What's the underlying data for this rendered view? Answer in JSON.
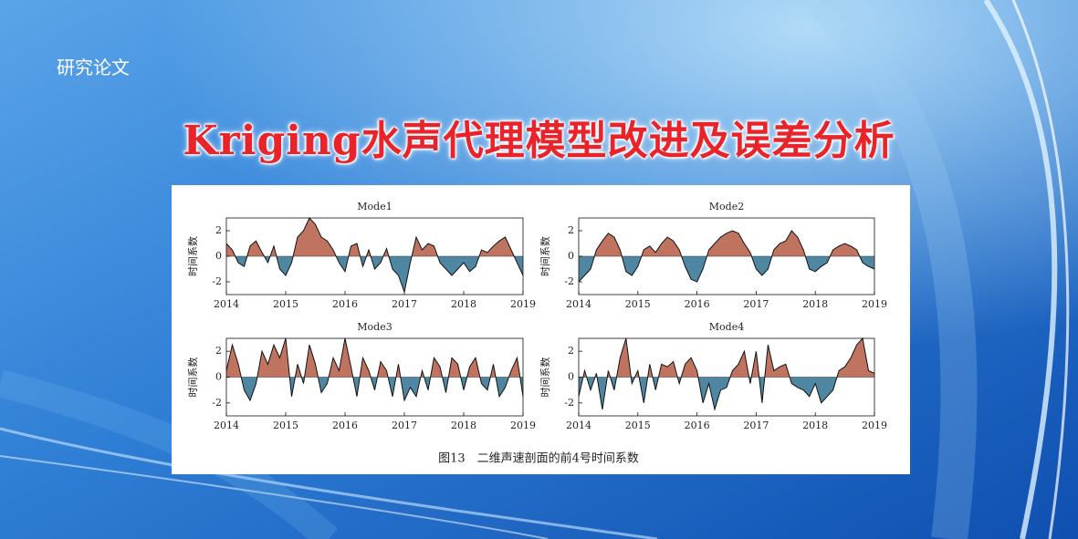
{
  "header": {
    "label": "研究论文",
    "title": "Kriging水声代理模型改进及误差分析"
  },
  "caption": "图13　二维声速剖面的前4号时间系数",
  "chart_data": [
    {
      "type": "area",
      "title": "Mode1",
      "ylabel": "时间系数",
      "positive_color": "#c0735e",
      "negative_color": "#4f87a3",
      "line_color": "#111111",
      "x": [
        2014,
        2014.1,
        2014.2,
        2014.3,
        2014.4,
        2014.5,
        2014.6,
        2014.7,
        2014.8,
        2014.9,
        2015,
        2015.1,
        2015.2,
        2015.3,
        2015.4,
        2015.5,
        2015.6,
        2015.7,
        2015.8,
        2015.9,
        2016,
        2016.1,
        2016.2,
        2016.3,
        2016.4,
        2016.5,
        2016.6,
        2016.7,
        2016.8,
        2016.9,
        2017,
        2017.1,
        2017.2,
        2017.3,
        2017.4,
        2017.5,
        2017.6,
        2017.7,
        2017.8,
        2017.9,
        2018,
        2018.1,
        2018.2,
        2018.3,
        2018.4,
        2018.5,
        2018.6,
        2018.7,
        2018.8,
        2018.9,
        2019
      ],
      "values": [
        1.0,
        0.5,
        -0.5,
        -0.8,
        0.8,
        1.2,
        0.3,
        -0.5,
        0.8,
        -1.0,
        -1.5,
        -0.5,
        1.5,
        2.0,
        3.0,
        2.5,
        1.5,
        1.2,
        0.5,
        -0.5,
        -1.2,
        0.8,
        1.0,
        -0.8,
        0.5,
        -1.0,
        -0.5,
        0.6,
        -1.0,
        -1.5,
        -2.8,
        -0.5,
        1.5,
        0.5,
        1.0,
        0.8,
        -0.5,
        -1.0,
        -1.5,
        -1.0,
        -0.5,
        -1.2,
        -0.8,
        0.5,
        0.3,
        0.8,
        1.2,
        1.5,
        0.5,
        -0.5,
        -1.5
      ],
      "xlim": [
        2014,
        2019
      ],
      "xticks": [
        2014,
        2015,
        2016,
        2017,
        2018,
        2019
      ],
      "ylim": [
        -3,
        3
      ],
      "yticks": [
        -2,
        0,
        2
      ]
    },
    {
      "type": "area",
      "title": "Mode2",
      "ylabel": "时间系数",
      "positive_color": "#c0735e",
      "negative_color": "#4f87a3",
      "line_color": "#111111",
      "x": [
        2014,
        2014.1,
        2014.2,
        2014.3,
        2014.4,
        2014.5,
        2014.6,
        2014.7,
        2014.8,
        2014.9,
        2015,
        2015.1,
        2015.2,
        2015.3,
        2015.4,
        2015.5,
        2015.6,
        2015.7,
        2015.8,
        2015.9,
        2016,
        2016.1,
        2016.2,
        2016.3,
        2016.4,
        2016.5,
        2016.6,
        2016.7,
        2016.8,
        2016.9,
        2017,
        2017.1,
        2017.2,
        2017.3,
        2017.4,
        2017.5,
        2017.6,
        2017.7,
        2017.8,
        2017.9,
        2018,
        2018.1,
        2018.2,
        2018.3,
        2018.4,
        2018.5,
        2018.6,
        2018.7,
        2018.8,
        2018.9,
        2019
      ],
      "values": [
        -2.0,
        -1.5,
        -1.0,
        0.5,
        1.2,
        1.8,
        1.5,
        0.5,
        -1.2,
        -1.5,
        -0.8,
        0.5,
        0.8,
        0.3,
        1.0,
        1.5,
        1.2,
        0.5,
        -0.8,
        -1.8,
        -2.0,
        -1.0,
        0.5,
        1.0,
        1.5,
        1.8,
        2.0,
        1.8,
        1.0,
        0.3,
        -1.0,
        -1.5,
        -1.0,
        0.5,
        1.0,
        1.2,
        2.0,
        1.5,
        0.5,
        -1.0,
        -1.2,
        -0.8,
        -0.5,
        0.5,
        0.8,
        1.0,
        0.8,
        0.5,
        -0.5,
        -0.8,
        -1.0
      ],
      "xlim": [
        2014,
        2019
      ],
      "xticks": [
        2014,
        2015,
        2016,
        2017,
        2018,
        2019
      ],
      "ylim": [
        -3,
        3
      ],
      "yticks": [
        -2,
        0,
        2
      ]
    },
    {
      "type": "area",
      "title": "Mode3",
      "ylabel": "时间系数",
      "positive_color": "#c0735e",
      "negative_color": "#4f87a3",
      "line_color": "#111111",
      "x": [
        2014,
        2014.1,
        2014.2,
        2014.3,
        2014.4,
        2014.5,
        2014.6,
        2014.7,
        2014.8,
        2014.9,
        2015,
        2015.1,
        2015.2,
        2015.3,
        2015.4,
        2015.5,
        2015.6,
        2015.7,
        2015.8,
        2015.9,
        2016,
        2016.1,
        2016.2,
        2016.3,
        2016.4,
        2016.5,
        2016.6,
        2016.7,
        2016.8,
        2016.9,
        2017,
        2017.1,
        2017.2,
        2017.3,
        2017.4,
        2017.5,
        2017.6,
        2017.7,
        2017.8,
        2017.9,
        2018,
        2018.1,
        2018.2,
        2018.3,
        2018.4,
        2018.5,
        2018.6,
        2018.7,
        2018.8,
        2018.9,
        2019
      ],
      "values": [
        0.5,
        2.5,
        1.0,
        -1.0,
        -1.8,
        -0.5,
        2.0,
        1.0,
        2.5,
        1.5,
        3.0,
        -1.5,
        1.0,
        -0.5,
        2.5,
        1.0,
        -1.2,
        -0.5,
        1.5,
        0.5,
        3.0,
        0.8,
        -1.5,
        1.5,
        0.5,
        -1.0,
        1.2,
        0.5,
        -1.5,
        1.0,
        -1.8,
        -0.8,
        -1.5,
        0.5,
        -1.0,
        1.5,
        0.8,
        -1.2,
        1.5,
        1.0,
        -1.0,
        0.8,
        1.5,
        -0.5,
        -1.0,
        1.0,
        -1.5,
        -0.8,
        0.5,
        1.5,
        -1.5
      ],
      "xlim": [
        2014,
        2019
      ],
      "xticks": [
        2014,
        2015,
        2016,
        2017,
        2018,
        2019
      ],
      "ylim": [
        -3,
        3
      ],
      "yticks": [
        -2,
        0,
        2
      ]
    },
    {
      "type": "area",
      "title": "Mode4",
      "ylabel": "时间系数",
      "positive_color": "#c0735e",
      "negative_color": "#4f87a3",
      "line_color": "#111111",
      "x": [
        2014,
        2014.1,
        2014.2,
        2014.3,
        2014.4,
        2014.5,
        2014.6,
        2014.7,
        2014.8,
        2014.9,
        2015,
        2015.1,
        2015.2,
        2015.3,
        2015.4,
        2015.5,
        2015.6,
        2015.7,
        2015.8,
        2015.9,
        2016,
        2016.1,
        2016.2,
        2016.3,
        2016.4,
        2016.5,
        2016.6,
        2016.7,
        2016.8,
        2016.9,
        2017,
        2017.1,
        2017.2,
        2017.3,
        2017.4,
        2017.5,
        2017.6,
        2017.7,
        2017.8,
        2017.9,
        2018,
        2018.1,
        2018.2,
        2018.3,
        2018.4,
        2018.5,
        2018.6,
        2018.7,
        2018.8,
        2018.9,
        2019
      ],
      "values": [
        -1.5,
        0.5,
        -1.0,
        0.3,
        -2.5,
        0.5,
        -1.0,
        1.5,
        3.0,
        -0.5,
        0.5,
        -2.0,
        1.0,
        -1.0,
        1.0,
        0.8,
        1.2,
        -0.5,
        1.0,
        1.5,
        0.5,
        -2.0,
        -0.5,
        -2.5,
        -1.0,
        -0.8,
        0.5,
        1.0,
        2.0,
        -0.5,
        2.0,
        -2.0,
        2.5,
        0.5,
        0.8,
        1.0,
        -0.5,
        -0.8,
        -1.0,
        -1.5,
        -0.5,
        -2.0,
        -1.5,
        -1.0,
        0.5,
        0.8,
        1.5,
        2.5,
        3.0,
        0.5,
        0.3
      ],
      "xlim": [
        2014,
        2019
      ],
      "xticks": [
        2014,
        2015,
        2016,
        2017,
        2018,
        2019
      ],
      "ylim": [
        -3,
        3
      ],
      "yticks": [
        -2,
        0,
        2
      ]
    }
  ]
}
